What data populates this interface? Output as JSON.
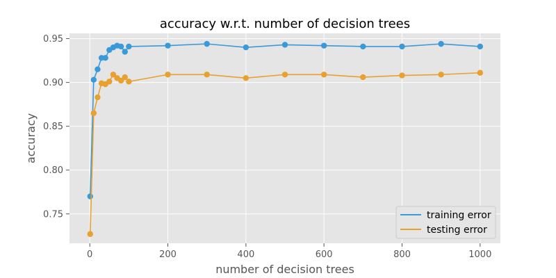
{
  "colors": {
    "background": "#e5e5e5",
    "grid": "#ffffff",
    "tick": "#555555",
    "training": "#3a99d9",
    "testing": "#e8a02f"
  },
  "chart_data": {
    "type": "line",
    "title": "accuracy w.r.t. number of decision trees",
    "xlabel": "number of decision trees",
    "ylabel": "accuracy",
    "xlim": [
      -52,
      1052
    ],
    "ylim": [
      0.7165,
      0.956
    ],
    "xticks": [
      0,
      200,
      400,
      600,
      800,
      1000
    ],
    "xtick_labels": [
      "0",
      "200",
      "400",
      "600",
      "800",
      "1000"
    ],
    "yticks": [
      0.75,
      0.8,
      0.85,
      0.9,
      0.95
    ],
    "ytick_labels": [
      "0.75",
      "0.80",
      "0.85",
      "0.90",
      "0.95"
    ],
    "grid": true,
    "legend_position": "bottom-right",
    "markers": true,
    "x": [
      1,
      10,
      20,
      30,
      40,
      50,
      60,
      70,
      80,
      90,
      100,
      200,
      300,
      400,
      500,
      600,
      700,
      800,
      900,
      1000
    ],
    "series": [
      {
        "name": "training error",
        "color": "#3a99d9",
        "values": [
          0.77,
          0.903,
          0.915,
          0.928,
          0.928,
          0.937,
          0.94,
          0.942,
          0.941,
          0.935,
          0.941,
          0.942,
          0.944,
          0.94,
          0.943,
          0.942,
          0.941,
          0.941,
          0.944,
          0.941
        ]
      },
      {
        "name": "testing error",
        "color": "#e8a02f",
        "values": [
          0.727,
          0.865,
          0.883,
          0.899,
          0.898,
          0.901,
          0.909,
          0.905,
          0.902,
          0.906,
          0.901,
          0.909,
          0.909,
          0.905,
          0.909,
          0.909,
          0.906,
          0.908,
          0.909,
          0.911
        ]
      }
    ]
  }
}
